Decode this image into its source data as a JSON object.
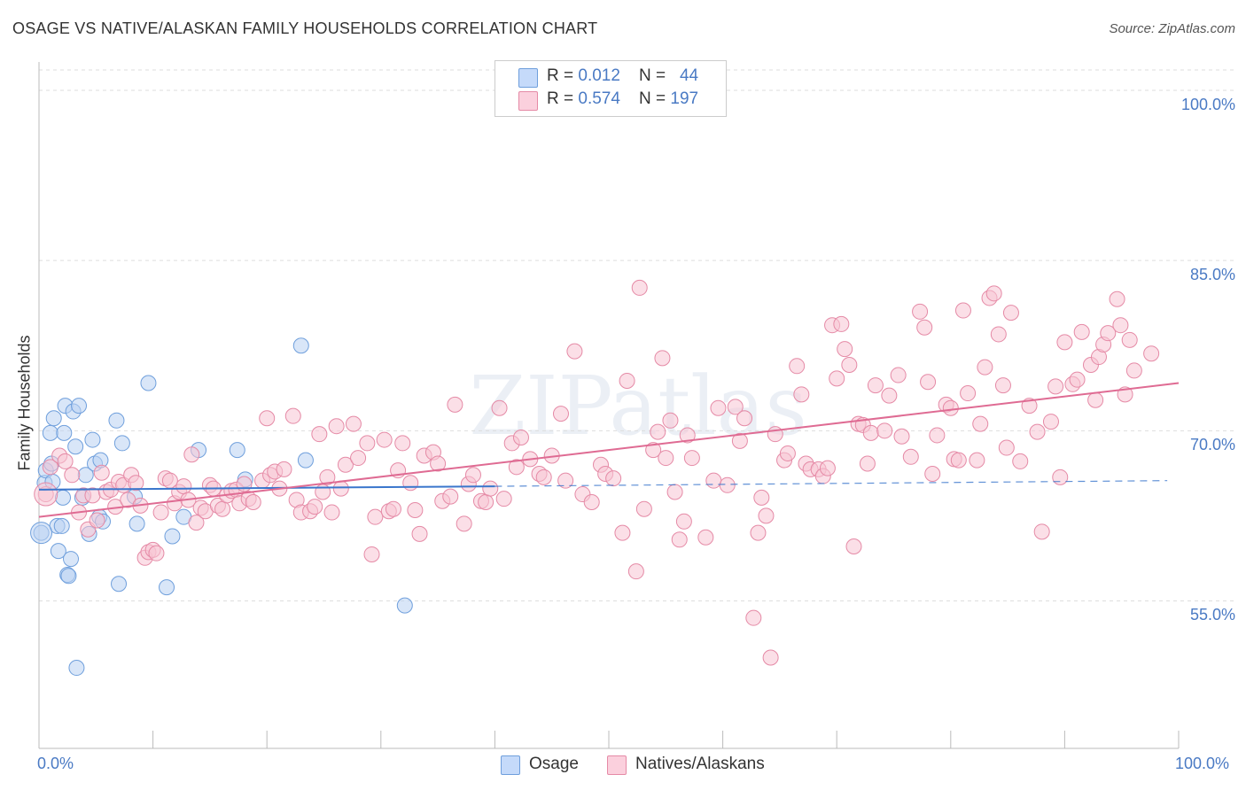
{
  "title": "OSAGE VS NATIVE/ALASKAN FAMILY HOUSEHOLDS CORRELATION CHART",
  "source": "Source: ZipAtlas.com",
  "watermark": "ZIPatlas",
  "stats": [
    {
      "r_label": "R = ",
      "r_value": "0.012",
      "n_label": "N = ",
      "n_value": "44",
      "color": "#aac8f0"
    },
    {
      "r_label": "R = ",
      "r_value": "0.574",
      "n_label": "N = ",
      "n_value": "197",
      "color": "#f7b9cc"
    }
  ],
  "legend": [
    {
      "label": "Osage",
      "color": "#aac8f0"
    },
    {
      "label": "Natives/Alaskans",
      "color": "#f7b9cc"
    }
  ],
  "chart_data": {
    "type": "scatter",
    "title": "OSAGE VS NATIVE/ALASKAN FAMILY HOUSEHOLDS CORRELATION CHART",
    "xlabel": "",
    "ylabel": "Family Households",
    "xlim": [
      0,
      100
    ],
    "ylim": [
      42,
      102.5
    ],
    "y_ticks": [
      55,
      70,
      85,
      100
    ],
    "y_tick_labels": [
      "55.0%",
      "70.0%",
      "85.0%",
      "100.0%"
    ],
    "x_tick_labels": [
      "0.0%",
      "100.0%"
    ],
    "grid": true,
    "series": [
      {
        "name": "Osage",
        "color": "#6f9fdc",
        "fill": "#b9d1f2",
        "trend": {
          "x0": 0,
          "y0": 64.8,
          "x1": 40,
          "y1": 65.1,
          "dash_to": 99,
          "dash_y": 65.6,
          "color": "#3a76cc"
        },
        "points": [
          [
            0.2,
            61
          ],
          [
            0.5,
            65.4
          ],
          [
            0.6,
            66.5
          ],
          [
            1.0,
            69.8
          ],
          [
            1.1,
            67.1
          ],
          [
            1.2,
            65.5
          ],
          [
            1.3,
            71.1
          ],
          [
            1.6,
            61.6
          ],
          [
            1.7,
            59.4
          ],
          [
            2.0,
            61.6
          ],
          [
            2.1,
            64.1
          ],
          [
            2.2,
            69.8
          ],
          [
            2.3,
            72.2
          ],
          [
            2.5,
            57.3
          ],
          [
            2.6,
            57.2
          ],
          [
            2.8,
            58.7
          ],
          [
            3.0,
            71.7
          ],
          [
            3.2,
            68.6
          ],
          [
            3.3,
            49.1
          ],
          [
            3.5,
            72.2
          ],
          [
            3.8,
            64.1
          ],
          [
            4.1,
            66.1
          ],
          [
            4.4,
            60.9
          ],
          [
            4.7,
            69.2
          ],
          [
            4.9,
            67.1
          ],
          [
            5.3,
            62.4
          ],
          [
            5.4,
            67.4
          ],
          [
            5.6,
            62.0
          ],
          [
            6.8,
            70.9
          ],
          [
            7.0,
            56.5
          ],
          [
            7.3,
            68.9
          ],
          [
            8.4,
            64.2
          ],
          [
            8.6,
            61.8
          ],
          [
            9.6,
            74.2
          ],
          [
            11.2,
            56.2
          ],
          [
            11.7,
            60.7
          ],
          [
            12.7,
            62.4
          ],
          [
            14.0,
            68.3
          ],
          [
            17.4,
            68.3
          ],
          [
            18.1,
            65.7
          ],
          [
            23.0,
            77.5
          ],
          [
            23.4,
            67.4
          ],
          [
            32.1,
            54.6
          ]
        ]
      },
      {
        "name": "Natives/Alaskans",
        "color": "#e58aa6",
        "fill": "#f7c4d3",
        "trend": {
          "x0": 0,
          "y0": 62.4,
          "x1": 100,
          "y1": 74.2,
          "color": "#df6b93"
        },
        "points": [
          [
            0.6,
            64.4
          ],
          [
            1.0,
            66.8
          ],
          [
            1.8,
            67.8
          ],
          [
            2.3,
            67.3
          ],
          [
            2.9,
            66.1
          ],
          [
            3.5,
            62.8
          ],
          [
            3.9,
            64.3
          ],
          [
            4.3,
            61.3
          ],
          [
            4.7,
            64.3
          ],
          [
            5.1,
            62.1
          ],
          [
            5.5,
            66.3
          ],
          [
            5.9,
            64.6
          ],
          [
            6.3,
            64.8
          ],
          [
            6.7,
            63.3
          ],
          [
            7.0,
            65.5
          ],
          [
            7.4,
            65.2
          ],
          [
            7.8,
            63.9
          ],
          [
            8.1,
            66.1
          ],
          [
            8.5,
            65.4
          ],
          [
            8.9,
            63.4
          ],
          [
            9.3,
            58.8
          ],
          [
            9.6,
            59.3
          ],
          [
            10.0,
            59.5
          ],
          [
            10.3,
            59.2
          ],
          [
            10.7,
            62.8
          ],
          [
            11.1,
            65.8
          ],
          [
            11.5,
            65.6
          ],
          [
            11.9,
            63.6
          ],
          [
            12.3,
            64.6
          ],
          [
            12.7,
            65.1
          ],
          [
            13.1,
            63.9
          ],
          [
            13.4,
            67.9
          ],
          [
            13.8,
            61.9
          ],
          [
            14.2,
            63.2
          ],
          [
            14.6,
            62.9
          ],
          [
            15.0,
            65.2
          ],
          [
            15.3,
            64.9
          ],
          [
            15.7,
            63.4
          ],
          [
            16.1,
            63.1
          ],
          [
            16.5,
            64.3
          ],
          [
            16.9,
            64.7
          ],
          [
            17.3,
            64.8
          ],
          [
            17.6,
            63.6
          ],
          [
            18.0,
            65.3
          ],
          [
            18.4,
            64.0
          ],
          [
            18.8,
            63.7
          ],
          [
            19.6,
            65.6
          ],
          [
            20.0,
            71.1
          ],
          [
            20.3,
            66.1
          ],
          [
            20.7,
            66.4
          ],
          [
            21.1,
            64.9
          ],
          [
            21.5,
            66.6
          ],
          [
            22.3,
            71.3
          ],
          [
            22.6,
            63.9
          ],
          [
            23.0,
            62.8
          ],
          [
            23.8,
            62.9
          ],
          [
            24.2,
            63.3
          ],
          [
            24.6,
            69.7
          ],
          [
            24.9,
            64.6
          ],
          [
            25.3,
            65.9
          ],
          [
            25.7,
            62.8
          ],
          [
            26.1,
            70.4
          ],
          [
            26.5,
            64.9
          ],
          [
            26.9,
            67.0
          ],
          [
            27.6,
            70.6
          ],
          [
            28.0,
            67.6
          ],
          [
            28.8,
            68.9
          ],
          [
            29.2,
            59.1
          ],
          [
            29.5,
            62.4
          ],
          [
            30.3,
            69.2
          ],
          [
            30.7,
            62.9
          ],
          [
            31.1,
            63.1
          ],
          [
            31.5,
            66.5
          ],
          [
            31.9,
            68.9
          ],
          [
            32.6,
            65.4
          ],
          [
            33.0,
            63.0
          ],
          [
            33.4,
            60.9
          ],
          [
            33.8,
            67.8
          ],
          [
            34.6,
            68.1
          ],
          [
            35.0,
            67.1
          ],
          [
            35.4,
            63.8
          ],
          [
            36.1,
            64.2
          ],
          [
            36.5,
            72.3
          ],
          [
            37.3,
            61.8
          ],
          [
            37.7,
            65.3
          ],
          [
            38.1,
            66.1
          ],
          [
            38.8,
            63.8
          ],
          [
            39.2,
            63.7
          ],
          [
            39.6,
            64.9
          ],
          [
            40.4,
            72.0
          ],
          [
            40.8,
            64.0
          ],
          [
            41.5,
            68.9
          ],
          [
            41.9,
            66.8
          ],
          [
            42.3,
            69.4
          ],
          [
            43.1,
            67.5
          ],
          [
            43.9,
            66.2
          ],
          [
            44.3,
            65.9
          ],
          [
            45.0,
            67.8
          ],
          [
            45.8,
            71.5
          ],
          [
            46.2,
            65.6
          ],
          [
            47.0,
            77.0
          ],
          [
            47.7,
            64.4
          ],
          [
            48.5,
            63.7
          ],
          [
            49.3,
            67.0
          ],
          [
            49.7,
            66.2
          ],
          [
            50.4,
            65.8
          ],
          [
            51.2,
            61.0
          ],
          [
            51.6,
            74.4
          ],
          [
            52.4,
            57.6
          ],
          [
            52.7,
            82.6
          ],
          [
            53.1,
            63.1
          ],
          [
            53.9,
            68.3
          ],
          [
            54.3,
            69.9
          ],
          [
            54.7,
            76.4
          ],
          [
            55.0,
            67.6
          ],
          [
            55.4,
            70.9
          ],
          [
            55.8,
            64.6
          ],
          [
            56.2,
            60.4
          ],
          [
            56.6,
            62.0
          ],
          [
            56.9,
            69.6
          ],
          [
            57.3,
            67.6
          ],
          [
            58.5,
            60.6
          ],
          [
            59.2,
            65.6
          ],
          [
            59.6,
            72.0
          ],
          [
            60.4,
            65.2
          ],
          [
            61.1,
            72.1
          ],
          [
            61.5,
            69.1
          ],
          [
            61.9,
            71.1
          ],
          [
            62.7,
            53.5
          ],
          [
            63.1,
            61.0
          ],
          [
            63.4,
            64.1
          ],
          [
            63.8,
            62.5
          ],
          [
            64.2,
            50.0
          ],
          [
            64.6,
            69.7
          ],
          [
            65.4,
            67.4
          ],
          [
            65.7,
            68.0
          ],
          [
            66.5,
            75.7
          ],
          [
            66.9,
            73.2
          ],
          [
            67.3,
            67.1
          ],
          [
            67.7,
            66.6
          ],
          [
            68.4,
            66.6
          ],
          [
            68.8,
            66.0
          ],
          [
            69.2,
            66.7
          ],
          [
            69.6,
            79.3
          ],
          [
            70.0,
            74.6
          ],
          [
            70.4,
            79.4
          ],
          [
            70.7,
            77.2
          ],
          [
            71.1,
            75.8
          ],
          [
            71.5,
            59.8
          ],
          [
            71.9,
            70.6
          ],
          [
            72.3,
            70.5
          ],
          [
            72.7,
            67.1
          ],
          [
            73.0,
            69.8
          ],
          [
            73.4,
            74.0
          ],
          [
            74.2,
            70.0
          ],
          [
            74.6,
            73.1
          ],
          [
            75.4,
            74.9
          ],
          [
            75.7,
            69.5
          ],
          [
            76.5,
            67.7
          ],
          [
            77.3,
            80.5
          ],
          [
            77.7,
            79.1
          ],
          [
            78.0,
            74.3
          ],
          [
            78.4,
            66.2
          ],
          [
            78.8,
            69.6
          ],
          [
            79.6,
            72.3
          ],
          [
            80.0,
            72.0
          ],
          [
            80.3,
            67.5
          ],
          [
            80.7,
            67.4
          ],
          [
            81.1,
            80.6
          ],
          [
            81.5,
            73.3
          ],
          [
            82.3,
            67.4
          ],
          [
            82.6,
            70.6
          ],
          [
            83.0,
            75.6
          ],
          [
            83.4,
            81.7
          ],
          [
            83.8,
            82.1
          ],
          [
            84.2,
            78.5
          ],
          [
            84.6,
            74.0
          ],
          [
            84.9,
            68.5
          ],
          [
            85.3,
            80.4
          ],
          [
            86.1,
            67.3
          ],
          [
            86.9,
            72.2
          ],
          [
            87.6,
            69.9
          ],
          [
            88.0,
            61.1
          ],
          [
            88.8,
            70.8
          ],
          [
            89.2,
            73.9
          ],
          [
            89.6,
            65.9
          ],
          [
            90.0,
            77.8
          ],
          [
            90.7,
            74.1
          ],
          [
            91.1,
            74.5
          ],
          [
            91.5,
            78.7
          ],
          [
            92.3,
            75.8
          ],
          [
            92.7,
            72.7
          ],
          [
            93.0,
            76.5
          ],
          [
            93.4,
            77.6
          ],
          [
            93.8,
            78.6
          ],
          [
            94.6,
            81.6
          ],
          [
            94.9,
            79.3
          ],
          [
            95.3,
            73.2
          ],
          [
            95.7,
            78.0
          ],
          [
            96.1,
            75.3
          ],
          [
            97.6,
            76.8
          ]
        ]
      }
    ]
  }
}
